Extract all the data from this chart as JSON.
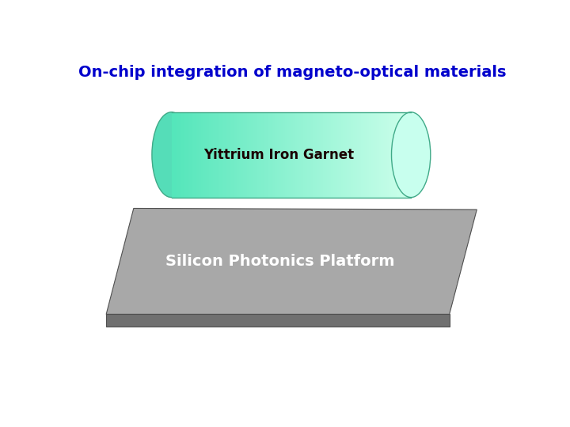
{
  "title": "On-chip integration of magneto-optical materials",
  "title_color": "#0000CC",
  "title_fontsize": 14,
  "cylinder_label": "Yittrium Iron Garnet",
  "cylinder_label_color": "#1A0000",
  "cylinder_label_fontsize": 12,
  "platform_label": "Silicon Photonics Platform",
  "platform_label_color": "#FFFFFF",
  "platform_label_fontsize": 14,
  "bg_color": "#FFFFFF",
  "platform_color_top": "#A8A8A8",
  "platform_color_bottom": "#707070",
  "platform_edge_color": "#505050"
}
